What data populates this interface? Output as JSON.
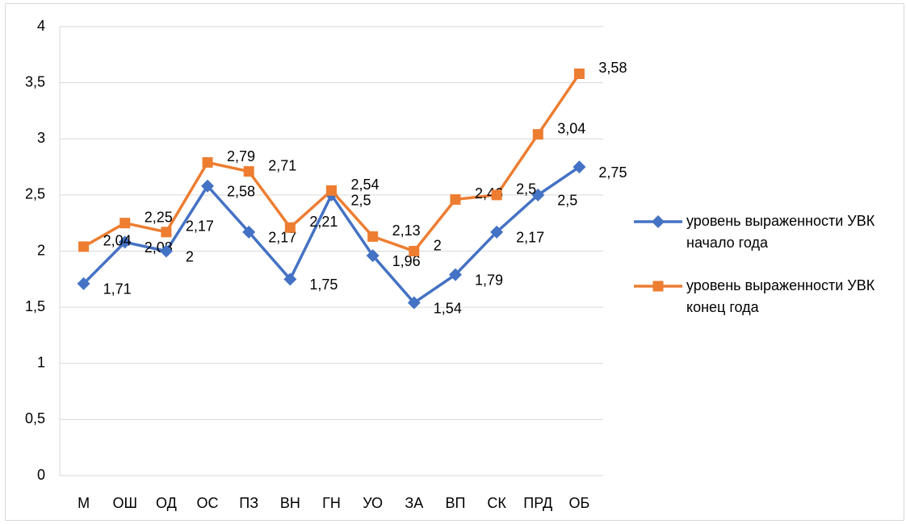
{
  "chart_data": {
    "type": "line",
    "categories": [
      "М",
      "ОШ",
      "ОД",
      "ОС",
      "ПЗ",
      "ВН",
      "ГН",
      "УО",
      "ЗА",
      "ВП",
      "СК",
      "ПРД",
      "ОБ"
    ],
    "series": [
      {
        "name": "уровень выраженности УВК начало года",
        "color": "#4472c4",
        "marker": "diamond",
        "values": [
          1.71,
          2.08,
          2,
          2.58,
          2.17,
          1.75,
          2.5,
          1.96,
          1.54,
          1.79,
          2.17,
          2.5,
          2.75
        ],
        "value_labels": [
          "1,71",
          "2,08",
          "2",
          "2,58",
          "2,17",
          "1,75",
          "2,5",
          "1,96",
          "1,54",
          "1,79",
          "2,17",
          "2,5",
          "2,75"
        ]
      },
      {
        "name": "уровень выраженности УВК конец года",
        "color": "#ed7d31",
        "marker": "square",
        "values": [
          2.04,
          2.25,
          2.17,
          2.79,
          2.71,
          2.21,
          2.54,
          2.13,
          2,
          2.46,
          2.5,
          3.04,
          3.58
        ],
        "value_labels": [
          "2,04",
          "2,25",
          "2,17",
          "2,79",
          "2,71",
          "2,21",
          "2,54",
          "2,13",
          "2",
          "2,46",
          "2,5",
          "3,04",
          "3,58"
        ]
      }
    ],
    "ylim": [
      0,
      4
    ],
    "yticks": [
      0,
      {
        "value": 0.5,
        "label": "0,5"
      },
      1,
      {
        "value": 1.5,
        "label": "1,5"
      },
      2,
      {
        "value": 2.5,
        "label": "2,5"
      },
      3,
      {
        "value": 3.5,
        "label": "3,5"
      },
      4
    ],
    "grid": true,
    "legend": "right"
  }
}
